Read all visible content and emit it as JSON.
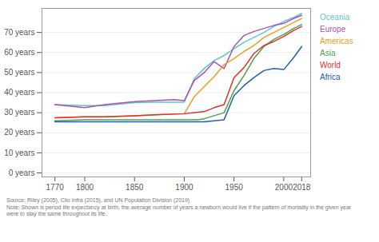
{
  "chart_data": {
    "type": "line",
    "series": [
      {
        "name": "Oceania",
        "color": "#5bc8c8",
        "x": [
          1770,
          1800,
          1820,
          1850,
          1870,
          1900,
          1910,
          1920,
          1930,
          1940,
          1950,
          1960,
          1970,
          1980,
          1990,
          2000,
          2010,
          2018
        ],
        "values": [
          34.0,
          33.5,
          33.5,
          35.0,
          35.2,
          35.2,
          47.0,
          52.0,
          56.0,
          58.5,
          62.0,
          65.0,
          67.5,
          70.0,
          73.0,
          75.5,
          77.5,
          79.5
        ]
      },
      {
        "name": "Europe",
        "color": "#b050b0",
        "x": [
          1770,
          1800,
          1820,
          1850,
          1870,
          1890,
          1900,
          1910,
          1920,
          1930,
          1940,
          1950,
          1960,
          1970,
          1980,
          1990,
          2000,
          2010,
          2018
        ],
        "values": [
          34.0,
          32.5,
          34.0,
          35.5,
          36.0,
          36.5,
          36.0,
          46.0,
          50.0,
          55.5,
          52.0,
          63.0,
          68.5,
          70.5,
          72.0,
          73.5,
          74.5,
          77.0,
          78.5
        ]
      },
      {
        "name": "Americas",
        "color": "#e8a020",
        "x": [
          1770,
          1800,
          1820,
          1850,
          1870,
          1900,
          1910,
          1920,
          1930,
          1940,
          1950,
          1960,
          1970,
          1980,
          1990,
          2000,
          2010,
          2018
        ],
        "values": [
          27.5,
          28.0,
          28.0,
          28.5,
          29.0,
          29.5,
          38.0,
          43.0,
          48.0,
          54.0,
          57.0,
          60.5,
          63.5,
          67.5,
          70.0,
          72.5,
          75.0,
          77.0
        ]
      },
      {
        "name": "Asia",
        "color": "#50a050",
        "x": [
          1770,
          1800,
          1820,
          1850,
          1870,
          1900,
          1913,
          1920,
          1930,
          1940,
          1950,
          1960,
          1970,
          1980,
          1990,
          2000,
          2010,
          2018
        ],
        "values": [
          26.0,
          26.5,
          26.5,
          26.5,
          26.5,
          26.5,
          26.5,
          27.0,
          28.5,
          30.0,
          41.0,
          48.5,
          57.0,
          63.0,
          66.5,
          69.0,
          72.0,
          74.0
        ]
      },
      {
        "name": "World",
        "color": "#e03030",
        "x": [
          1770,
          1800,
          1820,
          1850,
          1870,
          1900,
          1910,
          1920,
          1930,
          1940,
          1950,
          1960,
          1970,
          1980,
          1990,
          2000,
          2010,
          2018
        ],
        "values": [
          27.5,
          28.0,
          28.0,
          28.5,
          29.0,
          29.5,
          30.0,
          30.5,
          32.5,
          34.0,
          47.5,
          52.5,
          59.5,
          63.5,
          65.5,
          68.0,
          71.0,
          73.0
        ]
      },
      {
        "name": "Africa",
        "color": "#2060b0",
        "x": [
          1770,
          1800,
          1820,
          1850,
          1870,
          1900,
          1913,
          1920,
          1930,
          1940,
          1950,
          1960,
          1970,
          1980,
          1990,
          2000,
          2010,
          2018
        ],
        "values": [
          25.5,
          25.5,
          25.5,
          25.5,
          25.5,
          25.5,
          25.5,
          25.5,
          26.0,
          26.5,
          38.5,
          43.5,
          47.5,
          51.0,
          52.0,
          51.5,
          57.5,
          63.0
        ]
      }
    ],
    "xlim": [
      1757,
      2027
    ],
    "xticks": [
      1770,
      1800,
      1850,
      1900,
      1950,
      2000,
      2018
    ],
    "ylim": [
      -2,
      82
    ],
    "yticks": [
      {
        "value": 0,
        "label": "0 years"
      },
      {
        "value": 10,
        "label": "10 years"
      },
      {
        "value": 20,
        "label": "20 years"
      },
      {
        "value": 30,
        "label": "30 years"
      },
      {
        "value": 40,
        "label": "40 years"
      },
      {
        "value": 50,
        "label": "50 years"
      },
      {
        "value": 60,
        "label": "60 years"
      },
      {
        "value": 70,
        "label": "70 years"
      }
    ],
    "grid": true,
    "legend": "right",
    "annotations": [
      "Source: Riley (2005), Clio Infra (2015), and UN Population Division (2019)",
      "Note: Shown is period life expectancy at birth, the average number of years a newborn would live if the pattern of mortality in the given year\nwere to stay the same throughout its life."
    ]
  }
}
